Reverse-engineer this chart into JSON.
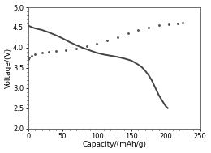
{
  "title": "",
  "xlabel": "Capacity/(mAh/g)",
  "ylabel": "Voltage/(V)",
  "xlim": [
    0,
    250
  ],
  "ylim": [
    2.0,
    5.0
  ],
  "xticks": [
    0,
    50,
    100,
    150,
    200,
    250
  ],
  "yticks": [
    2.0,
    2.5,
    3.0,
    3.5,
    4.0,
    4.5,
    5.0
  ],
  "discharge_x": [
    0,
    5,
    10,
    20,
    30,
    40,
    50,
    60,
    70,
    80,
    90,
    100,
    110,
    120,
    130,
    140,
    150,
    160,
    165,
    170,
    175,
    180,
    185,
    190,
    195,
    200,
    203
  ],
  "discharge_y": [
    4.55,
    4.51,
    4.48,
    4.44,
    4.38,
    4.31,
    4.23,
    4.14,
    4.06,
    3.99,
    3.93,
    3.87,
    3.83,
    3.8,
    3.77,
    3.73,
    3.68,
    3.58,
    3.52,
    3.43,
    3.32,
    3.18,
    3.0,
    2.82,
    2.68,
    2.55,
    2.5
  ],
  "charge_x": [
    0,
    2,
    5,
    10,
    20,
    30,
    40,
    55,
    70,
    85,
    100,
    115,
    130,
    145,
    160,
    175,
    190,
    205,
    218,
    225
  ],
  "charge_y": [
    3.72,
    3.76,
    3.8,
    3.84,
    3.87,
    3.89,
    3.91,
    3.94,
    3.98,
    4.03,
    4.1,
    4.18,
    4.26,
    4.35,
    4.43,
    4.5,
    4.55,
    4.58,
    4.6,
    4.61
  ],
  "line_color": "#444444",
  "dot_color": "#555555",
  "bg_color": "#ffffff",
  "figsize": [
    2.6,
    1.89
  ],
  "dpi": 100
}
